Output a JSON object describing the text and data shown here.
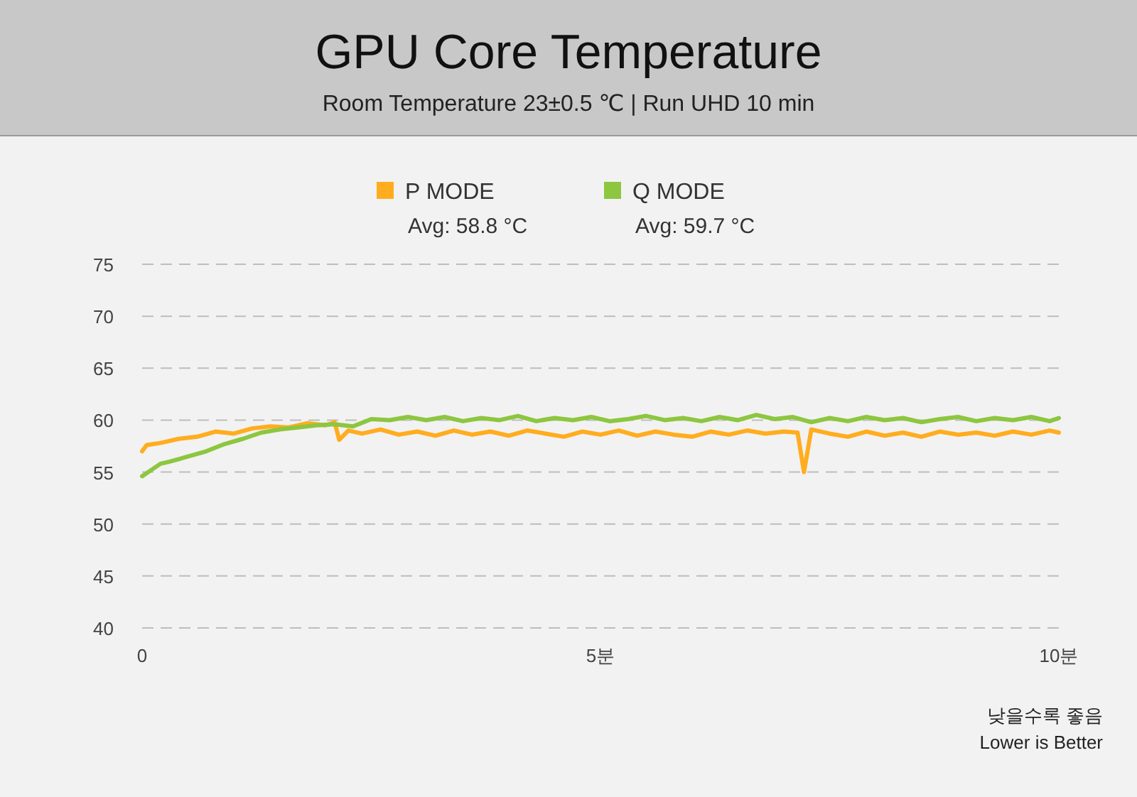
{
  "chart_data": {
    "type": "line",
    "title": "GPU Core Temperature",
    "subtitle": "Room Temperature 23±0.5 ℃  |  Run UHD 10 min",
    "xlim": [
      0,
      10
    ],
    "xticks": [
      0,
      {
        "value": 5,
        "label": "5분"
      },
      {
        "value": 10,
        "label": "10분"
      }
    ],
    "ylim": [
      40,
      75
    ],
    "yticks": [
      40,
      45,
      50,
      55,
      60,
      65,
      70,
      75
    ],
    "grid": "y",
    "legend": "top",
    "marker": "none",
    "line_style": "solid",
    "series": [
      {
        "name": "P MODE",
        "color": "#ffad1f",
        "x": [
          0,
          0.05,
          0.2,
          0.4,
          0.6,
          0.8,
          1.0,
          1.2,
          1.4,
          1.6,
          1.8,
          2.0,
          2.1,
          2.15,
          2.25,
          2.4,
          2.6,
          2.8,
          3.0,
          3.2,
          3.4,
          3.6,
          3.8,
          4.0,
          4.2,
          4.4,
          4.6,
          4.8,
          5.0,
          5.2,
          5.4,
          5.6,
          5.8,
          6.0,
          6.2,
          6.4,
          6.6,
          6.8,
          7.0,
          7.15,
          7.22,
          7.3,
          7.5,
          7.7,
          7.9,
          8.1,
          8.3,
          8.5,
          8.7,
          8.9,
          9.1,
          9.3,
          9.5,
          9.7,
          9.9,
          10
        ],
        "values": [
          57.0,
          57.6,
          57.8,
          58.2,
          58.4,
          58.9,
          58.7,
          59.2,
          59.4,
          59.3,
          59.7,
          59.5,
          59.8,
          58.1,
          59.0,
          58.7,
          59.1,
          58.6,
          58.9,
          58.5,
          59.0,
          58.6,
          58.9,
          58.5,
          59.0,
          58.7,
          58.4,
          58.9,
          58.6,
          59.0,
          58.5,
          58.9,
          58.6,
          58.4,
          58.9,
          58.6,
          59.0,
          58.7,
          58.9,
          58.8,
          55.0,
          59.1,
          58.7,
          58.4,
          58.9,
          58.5,
          58.8,
          58.4,
          58.9,
          58.6,
          58.8,
          58.5,
          58.9,
          58.6,
          59.0,
          58.8
        ]
      },
      {
        "name": "Q MODE",
        "color": "#8dc63f",
        "x": [
          0,
          0.1,
          0.2,
          0.3,
          0.5,
          0.7,
          0.9,
          1.1,
          1.3,
          1.5,
          1.7,
          1.9,
          2.1,
          2.3,
          2.5,
          2.7,
          2.9,
          3.1,
          3.3,
          3.5,
          3.7,
          3.9,
          4.1,
          4.3,
          4.5,
          4.7,
          4.9,
          5.1,
          5.3,
          5.5,
          5.7,
          5.9,
          6.1,
          6.3,
          6.5,
          6.7,
          6.9,
          7.1,
          7.3,
          7.5,
          7.7,
          7.9,
          8.1,
          8.3,
          8.5,
          8.7,
          8.9,
          9.1,
          9.3,
          9.5,
          9.7,
          9.9,
          10
        ],
        "values": [
          54.6,
          55.2,
          55.8,
          56.0,
          56.5,
          57.0,
          57.7,
          58.2,
          58.8,
          59.1,
          59.3,
          59.5,
          59.6,
          59.4,
          60.1,
          60.0,
          60.3,
          60.0,
          60.3,
          59.9,
          60.2,
          60.0,
          60.4,
          59.9,
          60.2,
          60.0,
          60.3,
          59.9,
          60.1,
          60.4,
          60.0,
          60.2,
          59.9,
          60.3,
          60.0,
          60.5,
          60.1,
          60.3,
          59.8,
          60.2,
          59.9,
          60.3,
          60.0,
          60.2,
          59.8,
          60.1,
          60.3,
          59.9,
          60.2,
          60.0,
          60.3,
          59.9,
          60.2
        ]
      }
    ],
    "annotations": [
      "Avg: 58.8 °C",
      "Avg: 59.7 °C",
      "낮을수록 좋음",
      "Lower is Better"
    ]
  }
}
